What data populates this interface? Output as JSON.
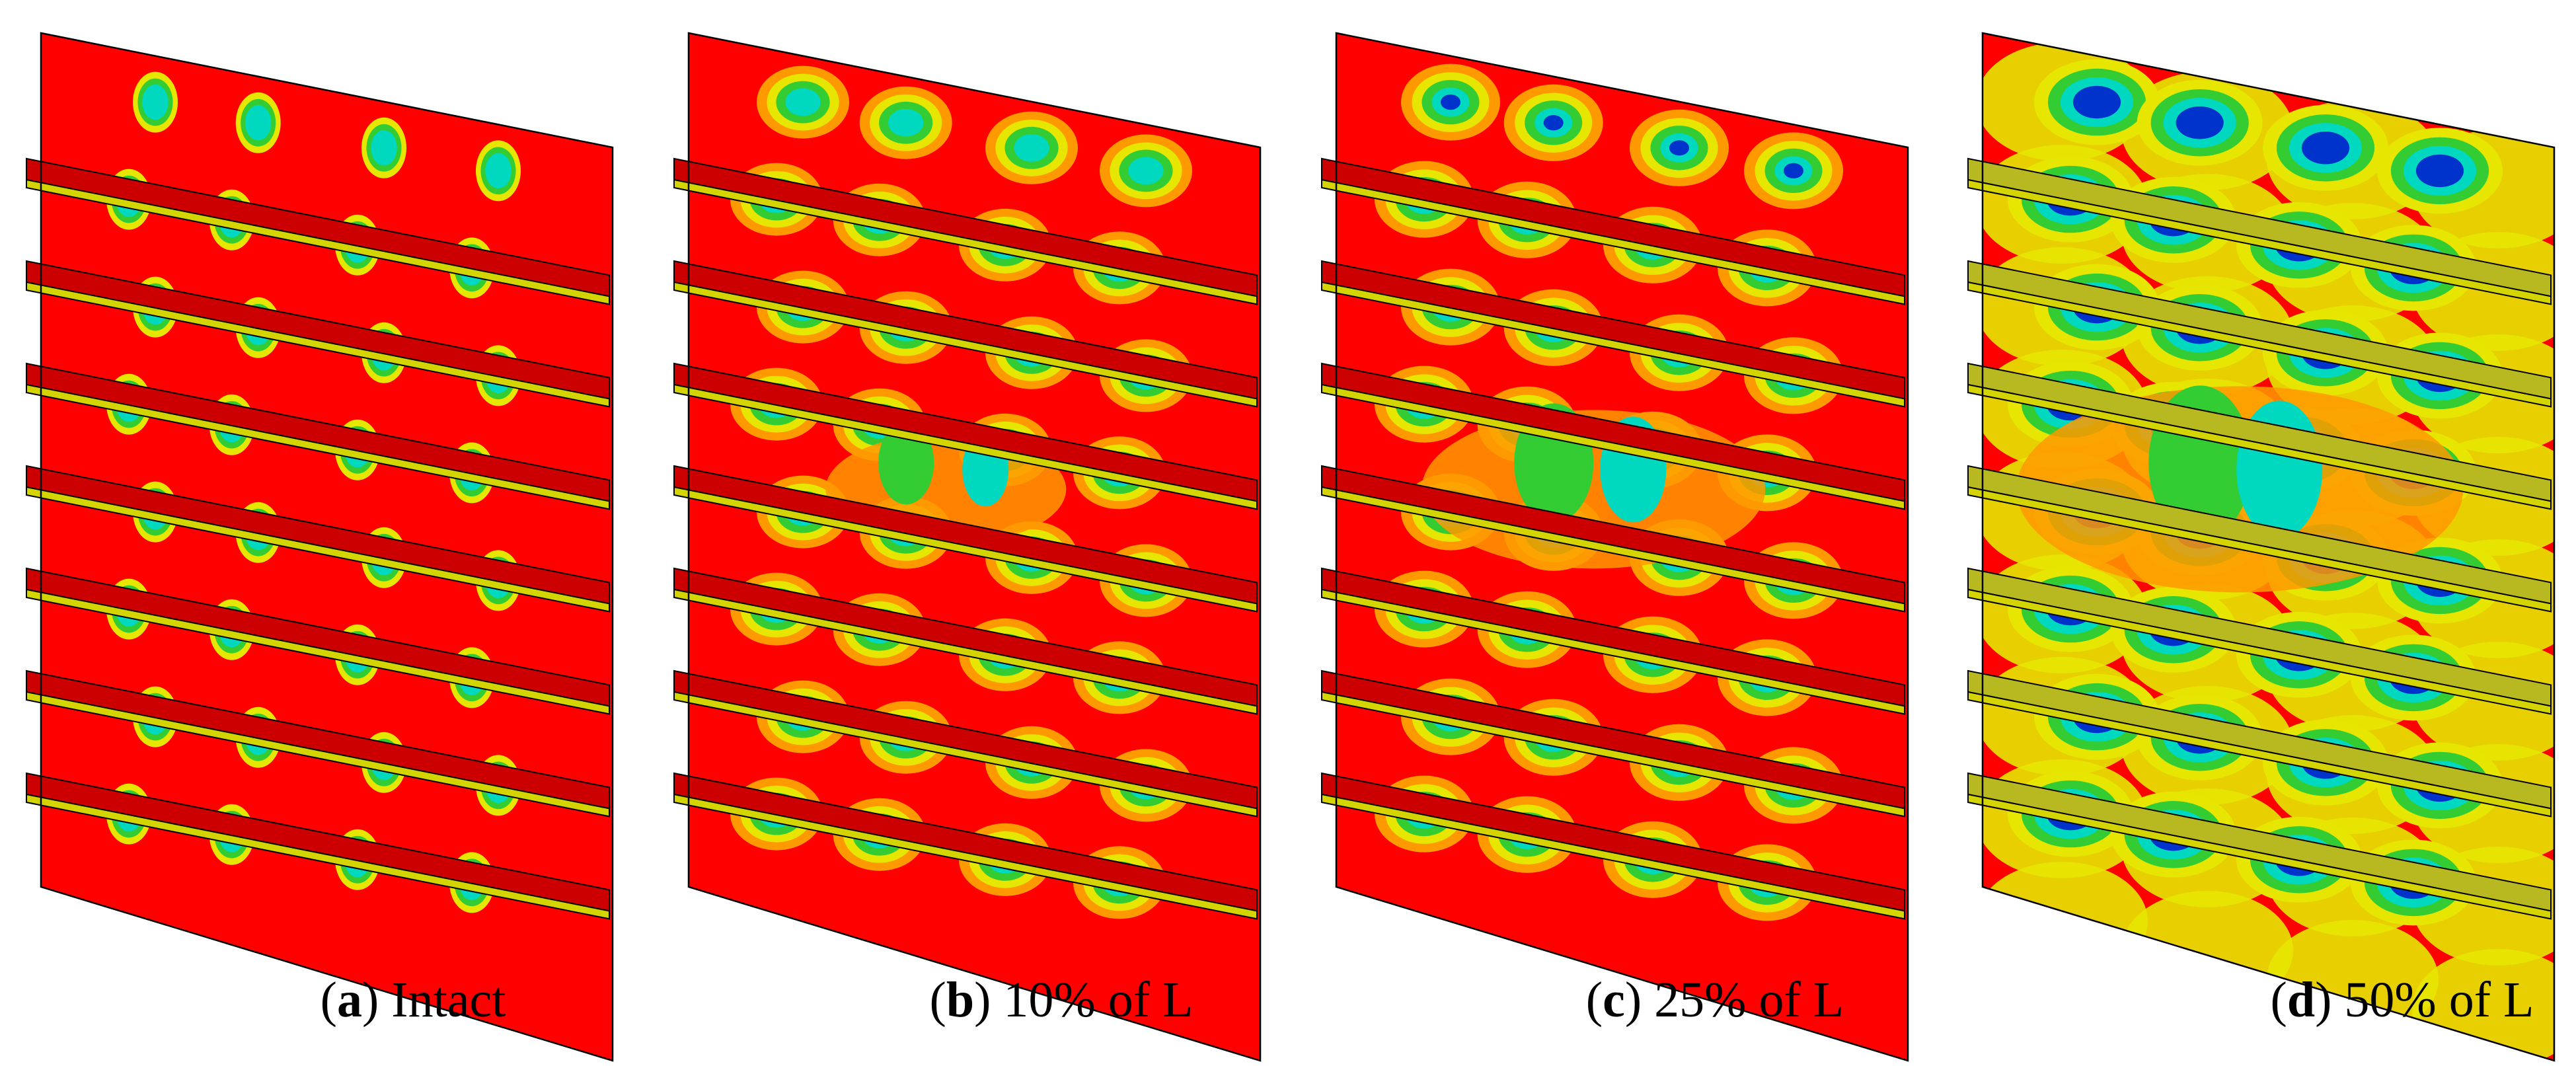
{
  "figure": {
    "panels": [
      {
        "letter": "a",
        "label": "Intact",
        "variant": 0
      },
      {
        "letter": "b",
        "label": "10% of L",
        "variant": 1
      },
      {
        "letter": "c",
        "label": "25% of L",
        "variant": 2
      },
      {
        "letter": "d",
        "label": "50% of L",
        "variant": 3
      }
    ],
    "colors": {
      "plate": "#ff0000",
      "stiffener_top": "#cc0000",
      "stiffener_edge": "#d4d400",
      "orange": "#ff9900",
      "yellow": "#e6e600",
      "green": "#33cc33",
      "cyan": "#00d9c0",
      "blue": "#0033cc",
      "outline": "#000000"
    }
  }
}
